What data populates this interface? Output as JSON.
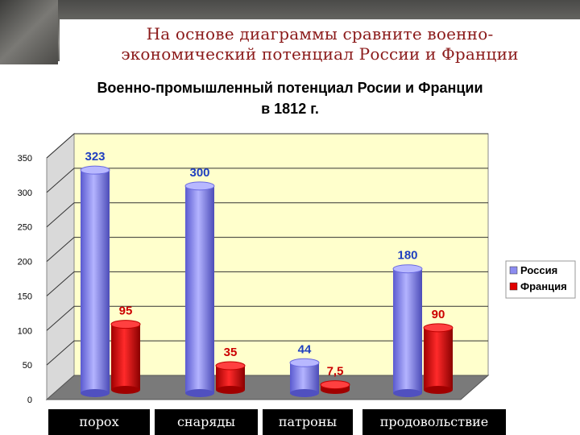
{
  "slide_title_line1": "На основе диаграммы сравните военно-",
  "slide_title_line2": "экономический потенциал России и Франции",
  "chart_data": {
    "type": "bar",
    "title_line1": "Военно-промышленный потенциал Росии и Франции",
    "title_line2": "в 1812 г.",
    "categories": [
      "порох",
      "снаряды",
      "патроны",
      "продовольствие"
    ],
    "series": [
      {
        "name": "Россия",
        "values": [
          323,
          300,
          44,
          180
        ],
        "labels": [
          "323",
          "300",
          "44",
          "180"
        ],
        "color": "#8c8cf0",
        "label_color": "#1f3fbf"
      },
      {
        "name": "Франция",
        "values": [
          95,
          35,
          7.5,
          90
        ],
        "labels": [
          "95",
          "35",
          "7,5",
          "90"
        ],
        "color": "#e00000",
        "label_color": "#cc0000"
      }
    ],
    "yticks": [
      "0",
      "50",
      "100",
      "150",
      "200",
      "250",
      "300",
      "350"
    ],
    "ylim": [
      0,
      350
    ],
    "grid": true,
    "legend": "right"
  }
}
